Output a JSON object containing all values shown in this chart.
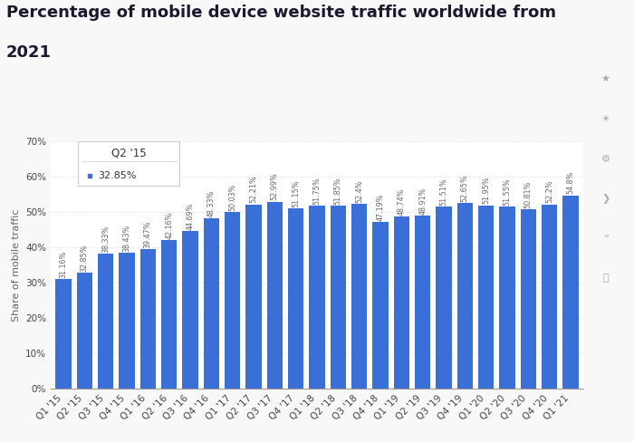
{
  "title_line1": "Percentage of mobile device website traffic worldwide from",
  "title_line2": "2021",
  "ylabel": "Share of mobile traffic",
  "categories": [
    "Q1 '15",
    "Q2 '15",
    "Q3 '15",
    "Q4 '15",
    "Q1 '16",
    "Q2 '16",
    "Q3 '16",
    "Q4 '16",
    "Q1 '17",
    "Q2 '17",
    "Q3 '17",
    "Q4 '17",
    "Q1 '18",
    "Q2 '18",
    "Q3 '18",
    "Q4 '18",
    "Q1 '19",
    "Q2 '19",
    "Q3 '19",
    "Q4 '19",
    "Q1 '20",
    "Q2 '20",
    "Q3 '20",
    "Q4 '20",
    "Q1 '21"
  ],
  "values": [
    31.16,
    32.85,
    38.33,
    38.43,
    39.47,
    42.16,
    44.69,
    48.33,
    50.03,
    52.21,
    52.99,
    51.15,
    51.75,
    51.85,
    52.4,
    47.19,
    48.74,
    48.91,
    51.51,
    52.65,
    51.95,
    51.55,
    50.81,
    52.2,
    54.8
  ],
  "bar_color": "#3a6fd8",
  "tooltip_label": "Q2 '15",
  "tooltip_value": "32.85%",
  "ylim": [
    0,
    70
  ],
  "yticks": [
    0,
    10,
    20,
    30,
    40,
    50,
    60,
    70
  ],
  "title_fontsize": 13,
  "ylabel_fontsize": 8,
  "tick_fontsize": 7.5,
  "label_fontsize": 5.8,
  "bg_color": "#f8f8f8",
  "plot_bg_color": "#ffffff",
  "grid_color": "#e0e0e0",
  "grid_linestyle": "dotted"
}
